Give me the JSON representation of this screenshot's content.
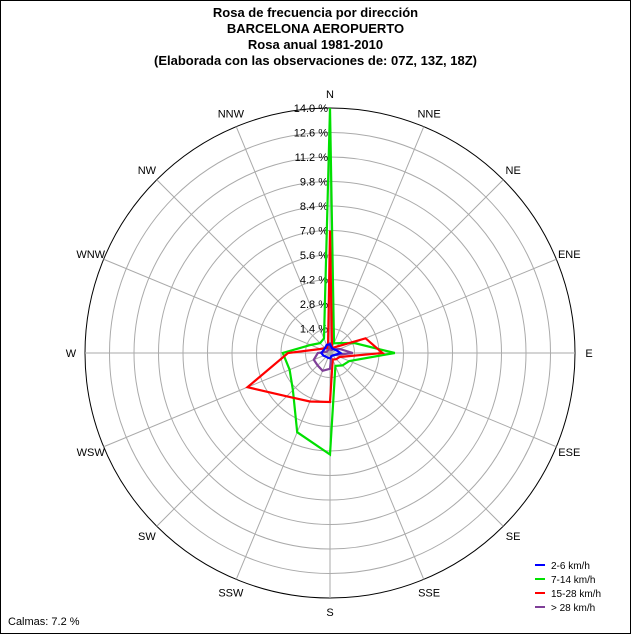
{
  "header": {
    "line1": "Rosa de frecuencia por dirección",
    "line2": "BARCELONA AEROPUERTO",
    "line3": "Rosa anual 1981-2010",
    "line4": "(Elaborada con las observaciones de: 07Z, 13Z, 18Z)"
  },
  "calms": "Calmas: 7.2 %",
  "chart_data": {
    "type": "radar",
    "title": "Rosa de frecuencia por dirección",
    "directions": [
      "N",
      "NNE",
      "NE",
      "ENE",
      "E",
      "ESE",
      "SE",
      "SSE",
      "S",
      "SSW",
      "SW",
      "WSW",
      "W",
      "WNW",
      "NW",
      "NNW"
    ],
    "ring_labels": [
      "1.4 %",
      "2.8 %",
      "4.2 %",
      "5.6 %",
      "7.0 %",
      "8.4 %",
      "9.8 %",
      "11.2 %",
      "12.6 %",
      "14.0 %"
    ],
    "rmax": 14.0,
    "ring_step": 1.4,
    "unit": "%",
    "legend_position": "bottom-right",
    "series": [
      {
        "name": "2-6 km/h",
        "color": "#0000ff",
        "values": [
          0.5,
          0.3,
          0.3,
          0.4,
          0.6,
          0.3,
          0.2,
          0.2,
          0.3,
          0.3,
          0.3,
          0.4,
          0.5,
          0.4,
          0.4,
          0.5
        ]
      },
      {
        "name": "7-14 km/h",
        "color": "#00e000",
        "values": [
          14.0,
          0.6,
          0.8,
          1.5,
          3.7,
          1.2,
          1.0,
          0.8,
          5.8,
          4.9,
          3.0,
          2.5,
          2.7,
          1.2,
          0.8,
          0.9
        ]
      },
      {
        "name": "15-28 km/h",
        "color": "#ff0000",
        "values": [
          7.0,
          0.3,
          0.5,
          2.2,
          3.0,
          0.6,
          0.5,
          0.4,
          2.8,
          3.0,
          3.5,
          5.1,
          2.4,
          0.6,
          0.4,
          0.3
        ]
      },
      {
        "name": "> 28 km/h",
        "color": "#7f3f98",
        "values": [
          0.6,
          0.2,
          0.3,
          0.6,
          1.3,
          0.3,
          0.2,
          0.2,
          0.9,
          1.1,
          1.0,
          1.0,
          0.7,
          0.2,
          0.2,
          0.2
        ]
      }
    ]
  }
}
